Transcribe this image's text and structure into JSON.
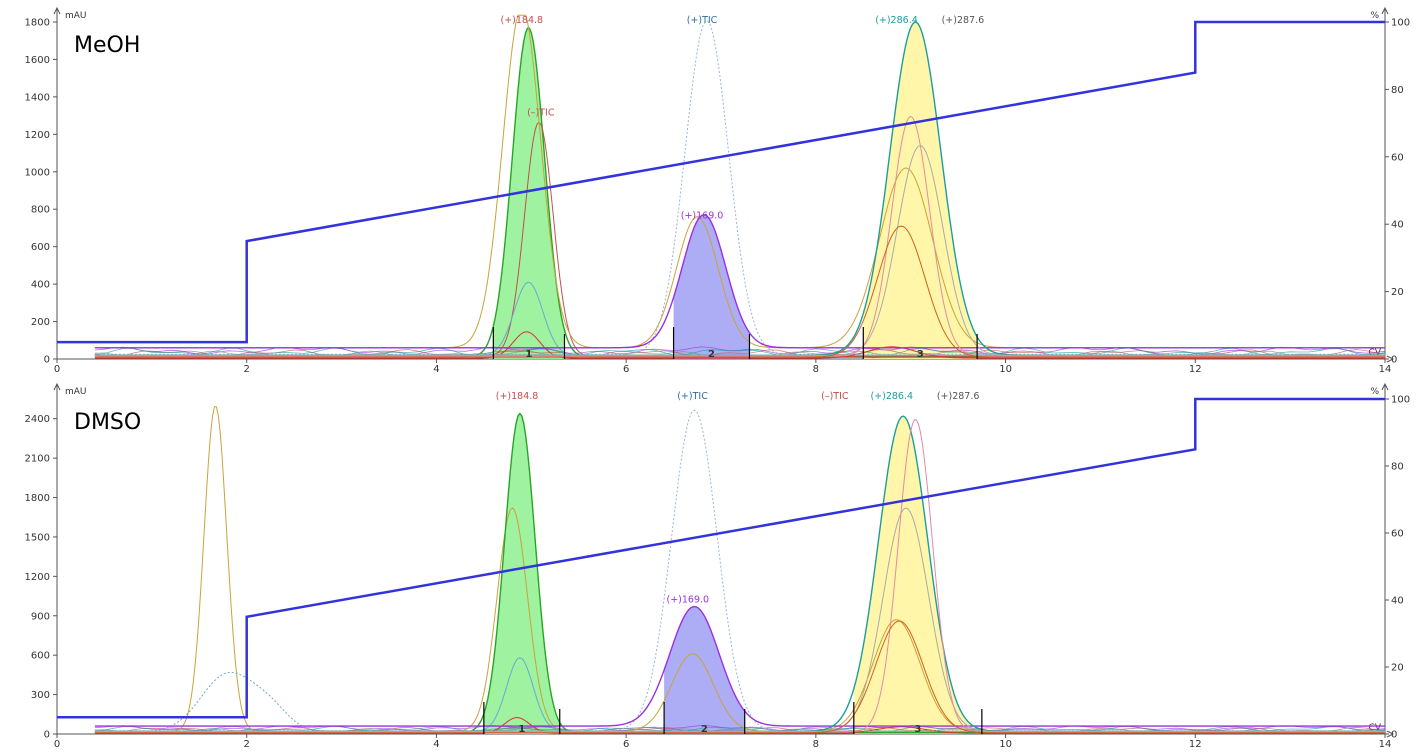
{
  "chart_data": [
    {
      "type": "line",
      "sample_label": "MeOH",
      "x_ticks": [
        "0",
        "2",
        "4",
        "6",
        "8",
        "10",
        "12",
        "14"
      ],
      "xlim": [
        0,
        14
      ],
      "y_unit": "mAU",
      "y_ticks": [
        "0",
        "200",
        "400",
        "600",
        "800",
        "1000",
        "1200",
        "1400",
        "1600",
        "1800"
      ],
      "ylim": [
        0,
        1800
      ],
      "y2_unit": "%",
      "y2_ticks": [
        "0",
        "20",
        "40",
        "60",
        "80",
        "100"
      ],
      "y2lim": [
        0,
        100
      ],
      "grid": false,
      "x_axis_end_label": "CV",
      "gradient": {
        "name": "% B",
        "x": [
          0,
          2,
          2,
          12,
          12,
          14
        ],
        "y": [
          5,
          5,
          35,
          85,
          100,
          100
        ],
        "color": "#3333dd"
      },
      "fractions": [
        {
          "label": "1",
          "x_start": 4.6,
          "x_end": 5.35,
          "color": "#8ef08e"
        },
        {
          "label": "2",
          "x_start": 6.5,
          "x_end": 7.3,
          "color": "#9f9ff5"
        },
        {
          "label": "3",
          "x_start": 8.5,
          "x_end": 9.7,
          "color": "#fff59a"
        }
      ],
      "peak_labels": [
        {
          "text": "(+)184.8",
          "x": 4.9,
          "y": 1830,
          "color": "#c0504d"
        },
        {
          "text": "(–)TIC",
          "x": 5.1,
          "y": 1300,
          "color": "#c0504d"
        },
        {
          "text": "(+)TIC",
          "x": 6.8,
          "y": 1830,
          "color": "#2e6e9e"
        },
        {
          "text": "(+)169.0",
          "x": 6.8,
          "y": 750,
          "color": "#9b30e0"
        },
        {
          "text": "(+)286.4",
          "x": 8.85,
          "y": 1830,
          "color": "#1a9e9e"
        },
        {
          "text": "(+)287.6",
          "x": 9.55,
          "y": 1830,
          "color": "#555555"
        }
      ],
      "series": [
        {
          "name": "(+)184.8",
          "color": "#27a527",
          "fill": "#8ef08e",
          "peaks": [
            {
              "center": 4.97,
              "width": 0.17,
              "height": 1760
            }
          ],
          "baseline": 10
        },
        {
          "name": "(–)TIC",
          "color": "#c0504d",
          "peaks": [
            {
              "center": 5.08,
              "width": 0.15,
              "height": 1250
            }
          ],
          "baseline": 15
        },
        {
          "color": "#c9a23a",
          "peaks": [
            {
              "center": 4.9,
              "width": 0.2,
              "height": 1820
            },
            {
              "center": 6.75,
              "width": 0.22,
              "height": 700
            },
            {
              "center": 8.95,
              "width": 0.28,
              "height": 960
            }
          ],
          "baseline": 60
        },
        {
          "color": "#6aaad0",
          "peaks": [
            {
              "center": 4.97,
              "width": 0.15,
              "height": 390
            }
          ],
          "baseline": 20
        },
        {
          "color": "#e03030",
          "peaks": [
            {
              "center": 4.95,
              "width": 0.14,
              "height": 140
            },
            {
              "center": 8.8,
              "width": 0.25,
              "height": 60
            }
          ],
          "baseline": 5
        },
        {
          "name": "(+)TIC",
          "color": "#9bb5d3",
          "dashed": true,
          "peaks": [
            {
              "center": 6.85,
              "width": 0.23,
              "height": 1780
            }
          ],
          "baseline": 25
        },
        {
          "name": "(+)169.0",
          "color": "#9b30e0",
          "fill": "#9f9ff5",
          "peaks": [
            {
              "center": 6.82,
              "width": 0.23,
              "height": 710
            }
          ],
          "baseline": 60
        },
        {
          "name": "(+)286.4",
          "color": "#1a9e9e",
          "fill": "#fff59a",
          "peaks": [
            {
              "center": 9.05,
              "width": 0.27,
              "height": 1780
            }
          ],
          "baseline": 20
        },
        {
          "name": "(+)287.6",
          "color": "#aaaaaa",
          "peaks": [
            {
              "center": 9.1,
              "width": 0.24,
              "height": 1120
            }
          ],
          "baseline": 20
        },
        {
          "color": "#e58aa0",
          "peaks": [
            {
              "center": 9.0,
              "width": 0.2,
              "height": 1280
            }
          ],
          "baseline": 15
        },
        {
          "color": "#d06020",
          "peaks": [
            {
              "center": 8.9,
              "width": 0.25,
              "height": 700
            }
          ],
          "baseline": 10
        }
      ]
    },
    {
      "type": "line",
      "sample_label": "DMSO",
      "x_ticks": [
        "0",
        "2",
        "4",
        "6",
        "8",
        "10",
        "12",
        "14"
      ],
      "xlim": [
        0,
        14
      ],
      "y_unit": "mAU",
      "y_ticks": [
        "0",
        "300",
        "600",
        "900",
        "1200",
        "1500",
        "1800",
        "2100",
        "2400"
      ],
      "ylim": [
        0,
        2550
      ],
      "y2_unit": "%",
      "y2_ticks": [
        "0",
        "20",
        "40",
        "60",
        "80",
        "100"
      ],
      "y2lim": [
        0,
        100
      ],
      "grid": false,
      "x_axis_end_label": "CV",
      "gradient": {
        "name": "% B",
        "x": [
          0,
          2,
          2,
          12,
          12,
          14
        ],
        "y": [
          5,
          5,
          35,
          85,
          100,
          100
        ],
        "color": "#3333dd"
      },
      "fractions": [
        {
          "label": "1",
          "x_start": 4.5,
          "x_end": 5.3,
          "color": "#8ef08e"
        },
        {
          "label": "2",
          "x_start": 6.4,
          "x_end": 7.25,
          "color": "#9f9ff5"
        },
        {
          "label": "3",
          "x_start": 8.4,
          "x_end": 9.75,
          "color": "#fff59a"
        }
      ],
      "peak_labels": [
        {
          "text": "(+)184.8",
          "x": 4.85,
          "y": 2560,
          "color": "#c0504d"
        },
        {
          "text": "(+)TIC",
          "x": 6.7,
          "y": 2560,
          "color": "#2e6e9e"
        },
        {
          "text": "(–)TIC",
          "x": 8.2,
          "y": 2560,
          "color": "#c0504d"
        },
        {
          "text": "(+)286.4",
          "x": 8.8,
          "y": 2560,
          "color": "#1a9e9e"
        },
        {
          "text": "(+)287.6",
          "x": 9.5,
          "y": 2560,
          "color": "#555555"
        },
        {
          "text": "(+)169.0",
          "x": 6.65,
          "y": 1000,
          "color": "#9b30e0"
        }
      ],
      "series": [
        {
          "color": "#c9a23a",
          "peaks": [
            {
              "center": 1.67,
              "width": 0.12,
              "height": 2480
            },
            {
              "center": 4.8,
              "width": 0.16,
              "height": 1700
            },
            {
              "center": 6.7,
              "width": 0.22,
              "height": 590
            },
            {
              "center": 8.85,
              "width": 0.25,
              "height": 850
            }
          ],
          "baseline": 20
        },
        {
          "color": "#6aaad0",
          "dashed": true,
          "peaks": [
            {
              "center": 1.8,
              "width": 0.28,
              "height": 440
            },
            {
              "center": 2.25,
              "width": 0.2,
              "height": 150
            }
          ],
          "baseline": 15
        },
        {
          "name": "(+)184.8",
          "color": "#27a527",
          "fill": "#8ef08e",
          "peaks": [
            {
              "center": 4.88,
              "width": 0.16,
              "height": 2430
            }
          ],
          "baseline": 10
        },
        {
          "color": "#6aaad0",
          "peaks": [
            {
              "center": 4.88,
              "width": 0.14,
              "height": 560
            }
          ],
          "baseline": 20
        },
        {
          "color": "#e03030",
          "peaks": [
            {
              "center": 4.85,
              "width": 0.13,
              "height": 120
            },
            {
              "center": 8.9,
              "width": 0.25,
              "height": 50
            }
          ],
          "baseline": 5
        },
        {
          "name": "(+)TIC",
          "color": "#9bb5d3",
          "dashed": true,
          "peaks": [
            {
              "center": 6.72,
              "width": 0.24,
              "height": 2440
            }
          ],
          "baseline": 25
        },
        {
          "name": "(+)169.0",
          "color": "#9b30e0",
          "fill": "#9f9ff5",
          "peaks": [
            {
              "center": 6.72,
              "width": 0.26,
              "height": 910
            }
          ],
          "baseline": 60
        },
        {
          "name": "(+)286.4",
          "color": "#1a9e9e",
          "fill": "#fff59a",
          "peaks": [
            {
              "center": 8.92,
              "width": 0.26,
              "height": 2400
            }
          ],
          "baseline": 20
        },
        {
          "name": "(+)287.6",
          "color": "#aaaaaa",
          "peaks": [
            {
              "center": 8.95,
              "width": 0.24,
              "height": 1700
            }
          ],
          "baseline": 20
        },
        {
          "color": "#e58aa0",
          "peaks": [
            {
              "center": 9.05,
              "width": 0.18,
              "height": 2380
            }
          ],
          "baseline": 15
        },
        {
          "color": "#d06020",
          "peaks": [
            {
              "center": 8.88,
              "width": 0.25,
              "height": 850
            }
          ],
          "baseline": 10
        }
      ]
    }
  ]
}
